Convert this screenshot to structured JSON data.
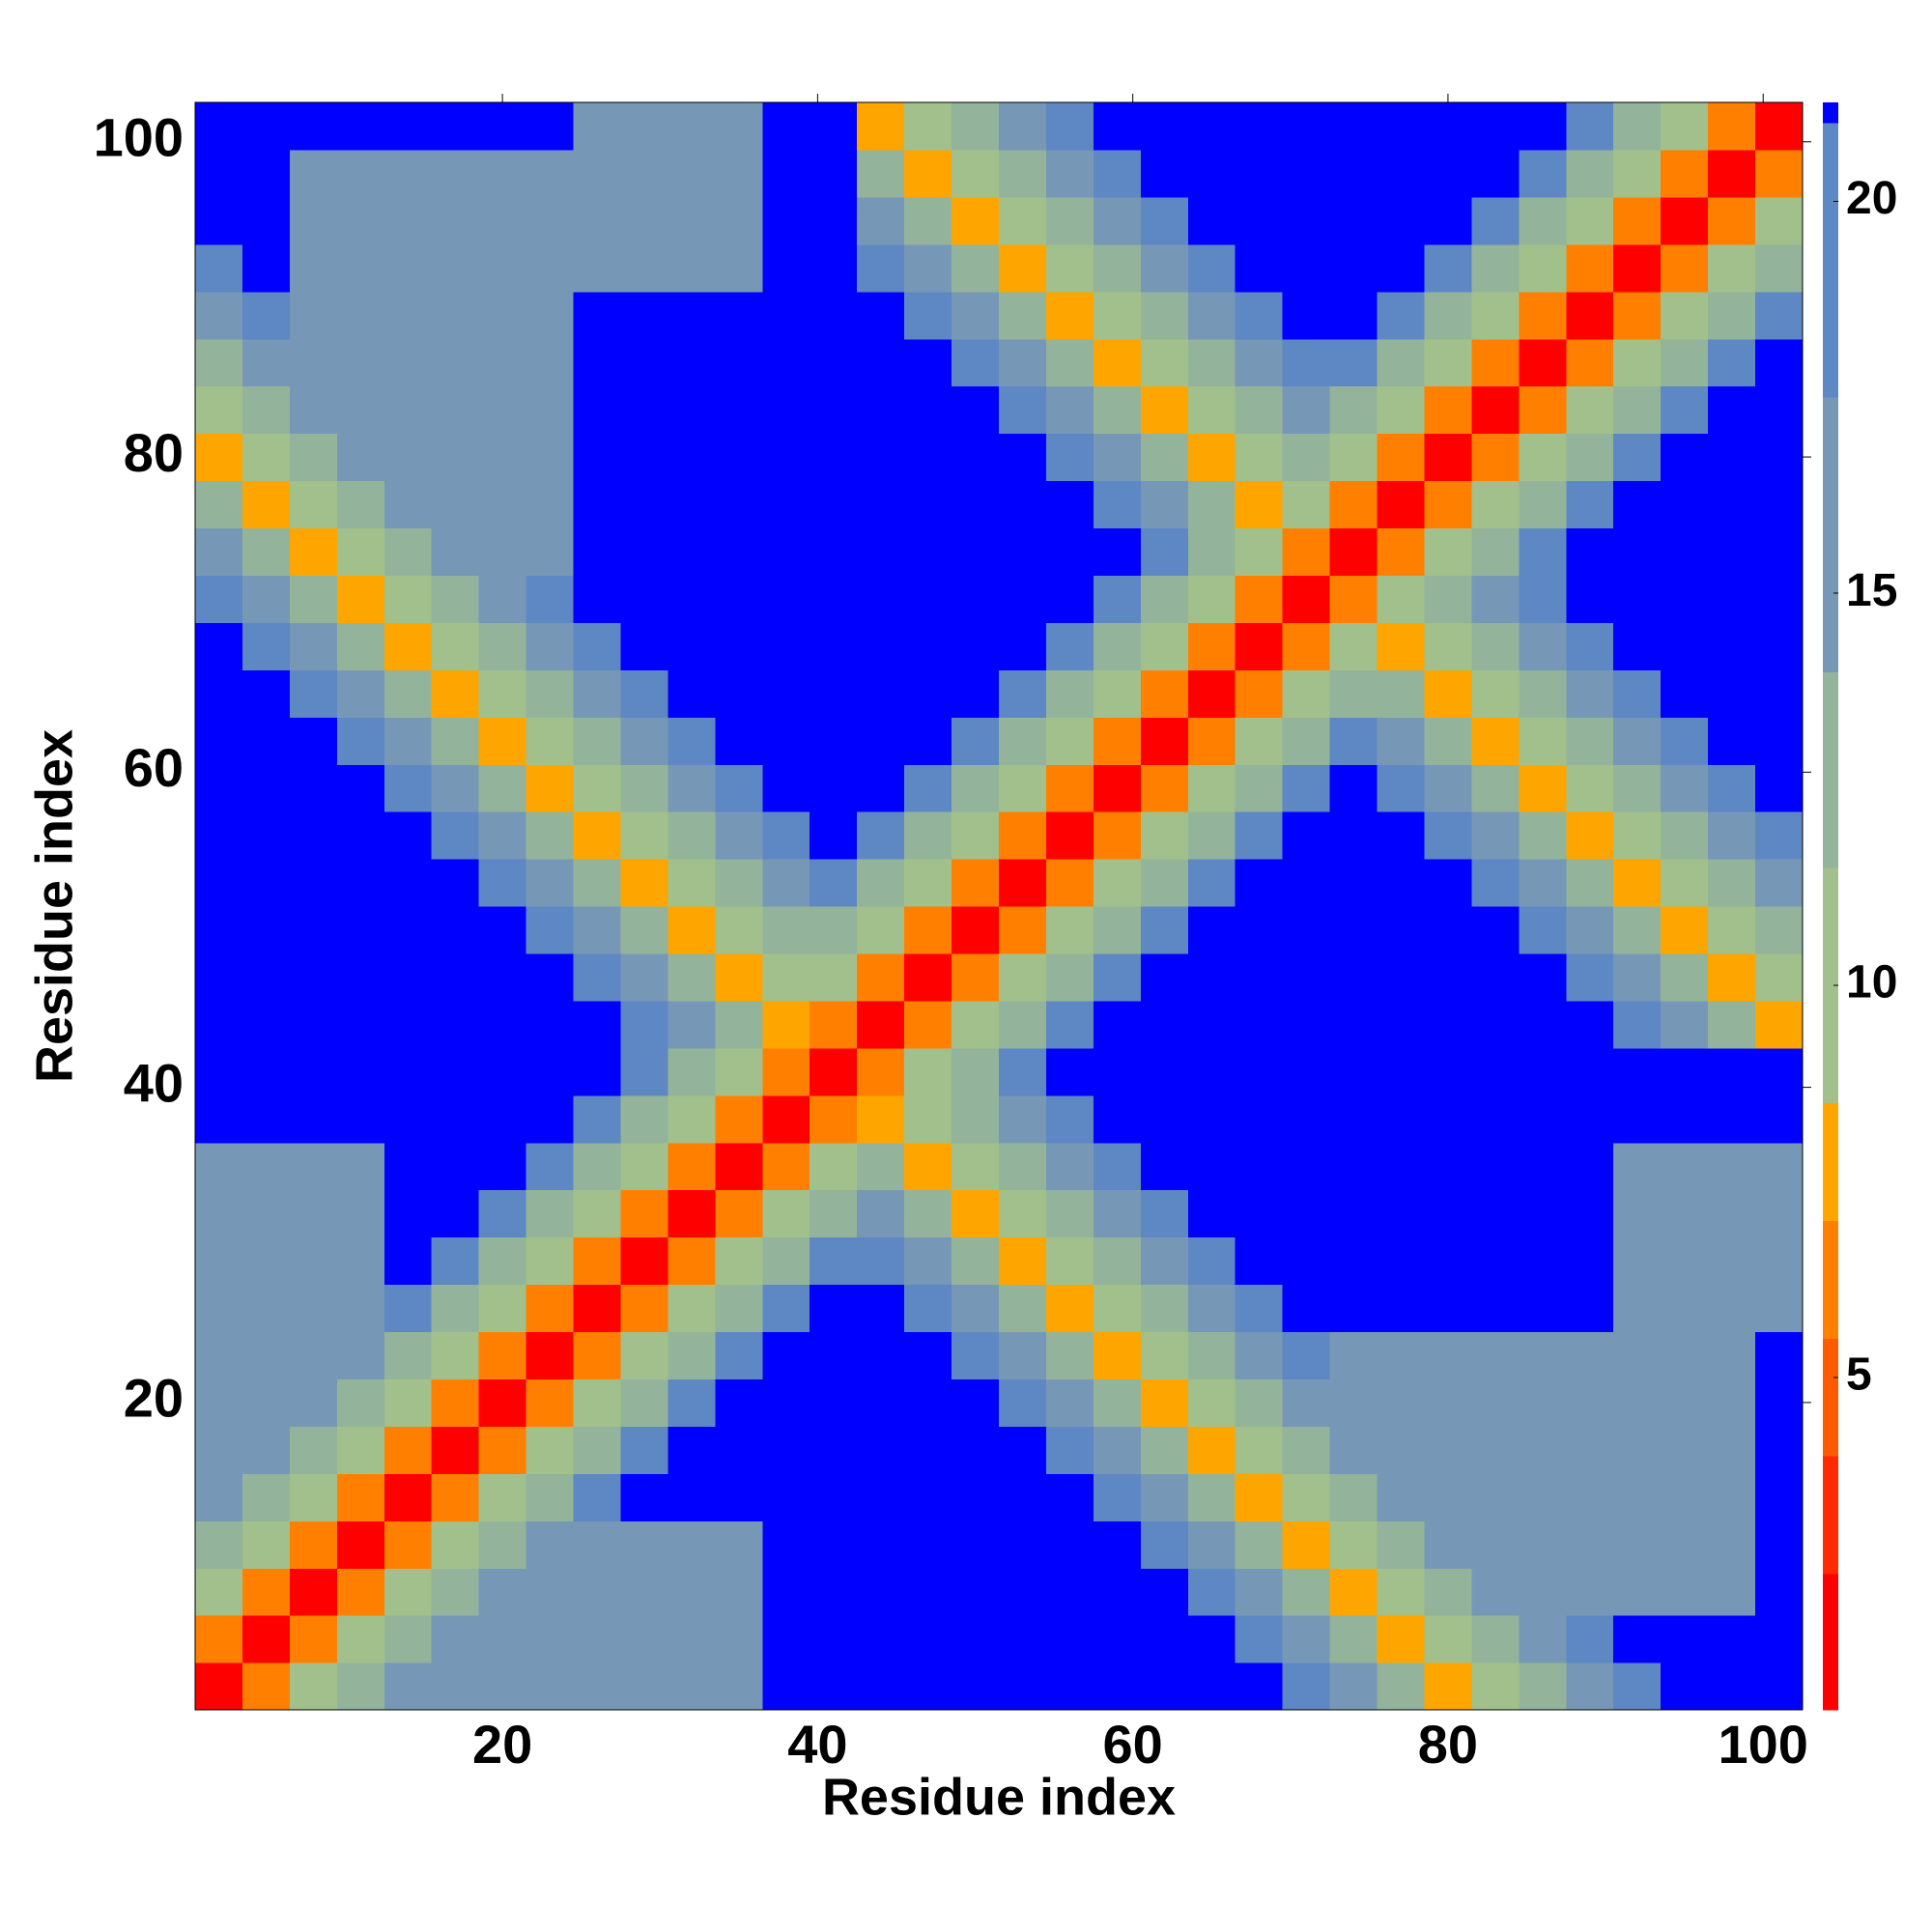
{
  "chart_data": {
    "type": "heatmap",
    "xlabel": "Residue index",
    "ylabel": "Residue index",
    "xlim": [
      0.5,
      102.5
    ],
    "ylim": [
      0.5,
      102.5
    ],
    "xticks": [
      20,
      40,
      60,
      80,
      100
    ],
    "yticks": [
      20,
      40,
      60,
      80,
      100
    ],
    "zlim": [
      0.76,
      21.26
    ],
    "colorbar_ticks": [
      5,
      10,
      15,
      20
    ],
    "colorscale": [
      [
        2.5,
        "#ff0000"
      ],
      [
        4,
        "#ff2a00"
      ],
      [
        5.5,
        "#ff5a00"
      ],
      [
        7,
        "#ff8000"
      ],
      [
        8.5,
        "#ffa500"
      ],
      [
        11.5,
        "#a2c08c"
      ],
      [
        14,
        "#93b49a"
      ],
      [
        17.5,
        "#7698b6"
      ],
      [
        21,
        "#5d88c4"
      ],
      [
        21.26,
        "#0000ff"
      ]
    ],
    "x": [
      2,
      5,
      8,
      11,
      14,
      17,
      20,
      23,
      26,
      29,
      32,
      35,
      38,
      41,
      44,
      47,
      50,
      53,
      56,
      59,
      62,
      65,
      68,
      71,
      74,
      77,
      80,
      83,
      86,
      89,
      92,
      95,
      98,
      101
    ],
    "y": [
      2,
      5,
      8,
      11,
      14,
      17,
      20,
      23,
      26,
      29,
      32,
      35,
      38,
      41,
      44,
      47,
      50,
      53,
      56,
      59,
      62,
      65,
      68,
      71,
      74,
      77,
      80,
      83,
      86,
      89,
      92,
      95,
      98,
      101
    ],
    "z": [
      [
        2,
        7,
        10,
        14,
        16,
        16,
        16,
        16,
        16,
        16,
        16,
        16,
        22,
        22,
        22,
        22,
        22,
        22,
        22,
        22,
        22,
        22,
        22,
        18,
        15,
        12,
        8,
        10,
        12,
        15,
        18,
        22,
        22,
        22
      ],
      [
        7,
        2,
        7,
        10,
        14,
        16,
        16,
        16,
        16,
        16,
        16,
        16,
        22,
        22,
        22,
        22,
        22,
        22,
        22,
        22,
        22,
        22,
        18,
        15,
        12,
        8,
        10,
        12,
        15,
        18,
        22,
        22,
        22,
        22
      ],
      [
        10,
        7,
        2,
        7,
        10,
        14,
        16,
        16,
        16,
        16,
        16,
        16,
        22,
        22,
        22,
        22,
        22,
        22,
        22,
        22,
        22,
        18,
        15,
        12,
        8,
        10,
        12,
        15,
        16,
        16,
        16,
        16,
        16,
        22
      ],
      [
        14,
        10,
        7,
        2,
        7,
        10,
        14,
        16,
        16,
        16,
        16,
        16,
        22,
        22,
        22,
        22,
        22,
        22,
        22,
        22,
        18,
        15,
        12,
        8,
        10,
        12,
        15,
        16,
        16,
        16,
        16,
        16,
        16,
        22
      ],
      [
        16,
        14,
        10,
        7,
        2,
        7,
        10,
        14,
        18,
        22,
        22,
        22,
        22,
        22,
        22,
        22,
        22,
        22,
        22,
        18,
        15,
        12,
        8,
        10,
        12,
        15,
        16,
        16,
        16,
        16,
        16,
        16,
        16,
        22
      ],
      [
        16,
        16,
        14,
        10,
        7,
        2,
        7,
        10,
        14,
        18,
        22,
        22,
        22,
        22,
        22,
        22,
        22,
        22,
        18,
        15,
        12,
        8,
        10,
        12,
        15,
        16,
        16,
        16,
        16,
        16,
        16,
        16,
        16,
        22
      ],
      [
        16,
        16,
        16,
        14,
        10,
        7,
        2,
        7,
        10,
        14,
        18,
        22,
        22,
        22,
        22,
        22,
        22,
        18,
        15,
        12,
        8,
        10,
        12,
        15,
        16,
        16,
        16,
        16,
        16,
        16,
        16,
        16,
        16,
        22
      ],
      [
        16,
        16,
        16,
        16,
        14,
        10,
        7,
        2,
        7,
        10,
        14,
        18,
        22,
        22,
        22,
        22,
        18,
        15,
        12,
        8,
        10,
        12,
        15,
        18,
        16,
        16,
        16,
        16,
        16,
        16,
        16,
        16,
        16,
        22
      ],
      [
        16,
        16,
        16,
        16,
        18,
        14,
        10,
        7,
        2,
        7,
        10,
        14,
        18,
        22,
        22,
        18,
        15,
        12,
        8,
        10,
        12,
        15,
        18,
        22,
        22,
        22,
        22,
        22,
        22,
        22,
        16,
        16,
        16,
        16
      ],
      [
        16,
        16,
        16,
        16,
        22,
        18,
        14,
        10,
        7,
        2,
        7,
        10,
        14,
        18,
        18,
        15,
        12,
        8,
        10,
        12,
        15,
        18,
        22,
        22,
        22,
        22,
        22,
        22,
        22,
        22,
        16,
        16,
        16,
        16
      ],
      [
        16,
        16,
        16,
        16,
        22,
        22,
        18,
        14,
        10,
        7,
        2,
        7,
        10,
        14,
        15,
        12,
        8,
        10,
        12,
        15,
        18,
        22,
        22,
        22,
        22,
        22,
        22,
        22,
        22,
        22,
        16,
        16,
        16,
        16
      ],
      [
        16,
        16,
        16,
        16,
        22,
        22,
        22,
        18,
        14,
        10,
        7,
        2,
        7,
        10,
        12,
        8,
        10,
        12,
        15,
        18,
        22,
        22,
        22,
        22,
        22,
        22,
        22,
        22,
        22,
        22,
        16,
        16,
        16,
        16
      ],
      [
        22,
        22,
        22,
        22,
        22,
        22,
        22,
        22,
        18,
        14,
        10,
        7,
        2,
        7,
        8,
        10,
        12,
        15,
        18,
        22,
        22,
        22,
        22,
        22,
        22,
        22,
        22,
        22,
        22,
        22,
        22,
        22,
        22,
        22
      ],
      [
        22,
        22,
        22,
        22,
        22,
        22,
        22,
        22,
        22,
        18,
        14,
        10,
        7,
        2,
        7,
        10,
        14,
        18,
        22,
        22,
        22,
        22,
        22,
        22,
        22,
        22,
        22,
        22,
        22,
        22,
        22,
        22,
        22,
        22
      ],
      [
        22,
        22,
        22,
        22,
        22,
        22,
        22,
        22,
        22,
        18,
        15,
        12,
        8,
        7,
        2,
        7,
        10,
        14,
        18,
        22,
        22,
        22,
        22,
        22,
        22,
        22,
        22,
        22,
        22,
        22,
        18,
        15,
        12,
        8
      ],
      [
        22,
        22,
        22,
        22,
        22,
        22,
        22,
        22,
        18,
        15,
        12,
        8,
        10,
        10,
        7,
        2,
        7,
        10,
        14,
        18,
        22,
        22,
        22,
        22,
        22,
        22,
        22,
        22,
        22,
        18,
        15,
        12,
        8,
        10
      ],
      [
        22,
        22,
        22,
        22,
        22,
        22,
        22,
        18,
        15,
        12,
        8,
        10,
        12,
        14,
        10,
        7,
        2,
        7,
        10,
        14,
        18,
        22,
        22,
        22,
        22,
        22,
        22,
        22,
        18,
        15,
        12,
        8,
        10,
        12
      ],
      [
        22,
        22,
        22,
        22,
        22,
        22,
        18,
        15,
        12,
        8,
        10,
        12,
        15,
        18,
        14,
        10,
        7,
        2,
        7,
        10,
        14,
        18,
        22,
        22,
        22,
        22,
        22,
        18,
        15,
        12,
        8,
        10,
        12,
        15
      ],
      [
        22,
        22,
        22,
        22,
        22,
        18,
        15,
        12,
        8,
        10,
        12,
        15,
        18,
        22,
        18,
        14,
        10,
        7,
        2,
        7,
        10,
        14,
        18,
        22,
        22,
        22,
        18,
        15,
        12,
        8,
        10,
        12,
        15,
        18
      ],
      [
        22,
        22,
        22,
        22,
        18,
        15,
        12,
        8,
        10,
        12,
        15,
        18,
        22,
        22,
        22,
        18,
        14,
        10,
        7,
        2,
        7,
        10,
        14,
        18,
        22,
        18,
        15,
        12,
        8,
        10,
        12,
        15,
        18,
        22
      ],
      [
        22,
        22,
        22,
        18,
        15,
        12,
        8,
        10,
        12,
        15,
        18,
        22,
        22,
        22,
        22,
        22,
        18,
        14,
        10,
        7,
        2,
        7,
        10,
        14,
        18,
        15,
        12,
        8,
        10,
        12,
        15,
        18,
        22,
        22
      ],
      [
        22,
        22,
        18,
        15,
        12,
        8,
        10,
        12,
        15,
        18,
        22,
        22,
        22,
        22,
        22,
        22,
        22,
        18,
        14,
        10,
        7,
        2,
        7,
        10,
        14,
        12,
        8,
        10,
        12,
        15,
        18,
        22,
        22,
        22
      ],
      [
        22,
        18,
        15,
        12,
        8,
        10,
        12,
        15,
        18,
        22,
        22,
        22,
        22,
        22,
        22,
        22,
        22,
        22,
        18,
        14,
        10,
        7,
        2,
        7,
        10,
        8,
        10,
        12,
        15,
        18,
        22,
        22,
        22,
        22
      ],
      [
        18,
        15,
        12,
        8,
        10,
        12,
        15,
        18,
        22,
        22,
        22,
        22,
        22,
        22,
        22,
        22,
        22,
        22,
        22,
        18,
        14,
        10,
        7,
        2,
        7,
        10,
        12,
        15,
        18,
        22,
        22,
        22,
        22,
        22
      ],
      [
        15,
        12,
        8,
        10,
        12,
        15,
        16,
        16,
        22,
        22,
        22,
        22,
        22,
        22,
        22,
        22,
        22,
        22,
        22,
        22,
        18,
        14,
        10,
        7,
        2,
        7,
        10,
        14,
        18,
        22,
        22,
        22,
        22,
        22
      ],
      [
        12,
        8,
        10,
        12,
        15,
        16,
        16,
        16,
        22,
        22,
        22,
        22,
        22,
        22,
        22,
        22,
        22,
        22,
        22,
        18,
        15,
        12,
        8,
        10,
        7,
        2,
        7,
        10,
        14,
        18,
        22,
        22,
        22,
        22
      ],
      [
        8,
        10,
        12,
        15,
        16,
        16,
        16,
        16,
        22,
        22,
        22,
        22,
        22,
        22,
        22,
        22,
        22,
        22,
        18,
        15,
        12,
        8,
        10,
        12,
        10,
        7,
        2,
        7,
        10,
        14,
        18,
        22,
        22,
        22
      ],
      [
        10,
        12,
        15,
        16,
        16,
        16,
        16,
        16,
        22,
        22,
        22,
        22,
        22,
        22,
        22,
        22,
        22,
        18,
        15,
        12,
        8,
        10,
        12,
        15,
        14,
        10,
        7,
        2,
        7,
        10,
        14,
        18,
        22,
        22
      ],
      [
        12,
        15,
        16,
        16,
        16,
        16,
        16,
        16,
        22,
        22,
        22,
        22,
        22,
        22,
        22,
        22,
        18,
        15,
        12,
        8,
        10,
        12,
        15,
        18,
        18,
        14,
        10,
        7,
        2,
        7,
        10,
        14,
        18,
        22
      ],
      [
        15,
        18,
        16,
        16,
        16,
        16,
        16,
        16,
        22,
        22,
        22,
        22,
        22,
        22,
        22,
        18,
        15,
        12,
        8,
        10,
        12,
        15,
        18,
        22,
        22,
        18,
        14,
        10,
        7,
        2,
        7,
        10,
        14,
        18
      ],
      [
        18,
        22,
        16,
        16,
        16,
        16,
        16,
        16,
        16,
        16,
        16,
        16,
        22,
        22,
        18,
        15,
        12,
        8,
        10,
        12,
        15,
        18,
        22,
        22,
        22,
        22,
        18,
        14,
        10,
        7,
        2,
        7,
        10,
        14
      ],
      [
        22,
        22,
        16,
        16,
        16,
        16,
        16,
        16,
        16,
        16,
        16,
        16,
        22,
        22,
        15,
        12,
        8,
        10,
        12,
        15,
        18,
        22,
        22,
        22,
        22,
        22,
        22,
        18,
        14,
        10,
        7,
        2,
        7,
        10
      ],
      [
        22,
        22,
        16,
        16,
        16,
        16,
        16,
        16,
        16,
        16,
        16,
        16,
        22,
        22,
        12,
        8,
        10,
        12,
        15,
        18,
        22,
        22,
        22,
        22,
        22,
        22,
        22,
        22,
        18,
        14,
        10,
        7,
        2,
        7
      ],
      [
        22,
        22,
        22,
        22,
        22,
        22,
        22,
        22,
        16,
        16,
        16,
        16,
        22,
        22,
        8,
        10,
        12,
        15,
        18,
        22,
        22,
        22,
        22,
        22,
        22,
        22,
        22,
        22,
        22,
        18,
        14,
        10,
        7,
        2
      ]
    ]
  }
}
